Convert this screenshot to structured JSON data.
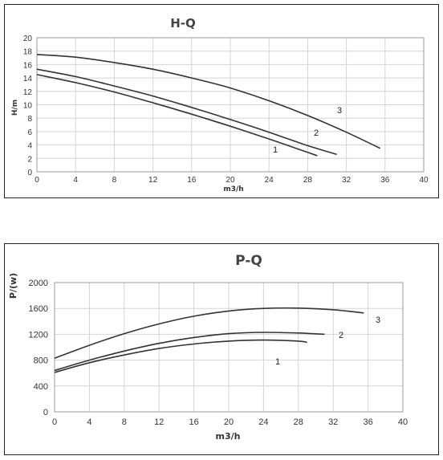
{
  "chart_data": [
    {
      "type": "line",
      "title": "H-Q",
      "xlabel": "m3/h",
      "ylabel": "H/m",
      "xlim": [
        0,
        40
      ],
      "ylim": [
        0,
        20
      ],
      "xticks": [
        "0",
        "4",
        "8",
        "12",
        "16",
        "20",
        "24",
        "28",
        "32",
        "36",
        "40"
      ],
      "yticks": [
        "0",
        "2",
        "4",
        "6",
        "8",
        "10",
        "12",
        "14",
        "16",
        "18",
        "20"
      ],
      "grid": true,
      "series": [
        {
          "name": "1",
          "x": [
            0,
            4,
            8,
            12,
            16,
            20,
            24,
            28,
            29
          ],
          "values": [
            14.5,
            13.3,
            11.9,
            10.3,
            8.6,
            6.8,
            4.9,
            2.9,
            2.4
          ]
        },
        {
          "name": "2",
          "x": [
            0,
            4,
            8,
            12,
            16,
            20,
            24,
            28,
            31
          ],
          "values": [
            15.3,
            14.2,
            12.8,
            11.3,
            9.6,
            7.8,
            5.9,
            3.9,
            2.6
          ]
        },
        {
          "name": "3",
          "x": [
            0,
            4,
            8,
            12,
            16,
            20,
            24,
            28,
            32,
            35.5
          ],
          "values": [
            17.5,
            17.1,
            16.3,
            15.3,
            14.0,
            12.5,
            10.6,
            8.4,
            5.9,
            3.5
          ]
        }
      ]
    },
    {
      "type": "line",
      "title": "P-Q",
      "xlabel": "m3/h",
      "ylabel": "P/(w)",
      "xlim": [
        0,
        40
      ],
      "ylim": [
        0,
        2000
      ],
      "xticks": [
        "0",
        "4",
        "8",
        "12",
        "16",
        "20",
        "24",
        "28",
        "32",
        "36",
        "40"
      ],
      "yticks": [
        "0",
        "400",
        "800",
        "1200",
        "1600",
        "2000"
      ],
      "grid": true,
      "series": [
        {
          "name": "1",
          "x": [
            0,
            4,
            8,
            12,
            16,
            20,
            24,
            28,
            29
          ],
          "values": [
            610,
            760,
            880,
            980,
            1050,
            1095,
            1110,
            1095,
            1075
          ]
        },
        {
          "name": "2",
          "x": [
            0,
            4,
            8,
            12,
            16,
            20,
            24,
            28,
            31
          ],
          "values": [
            640,
            800,
            940,
            1060,
            1150,
            1210,
            1230,
            1220,
            1200
          ]
        },
        {
          "name": "3",
          "x": [
            0,
            4,
            8,
            12,
            16,
            20,
            24,
            28,
            32,
            35.5
          ],
          "values": [
            830,
            1030,
            1210,
            1360,
            1480,
            1560,
            1600,
            1605,
            1580,
            1530
          ]
        }
      ]
    }
  ]
}
